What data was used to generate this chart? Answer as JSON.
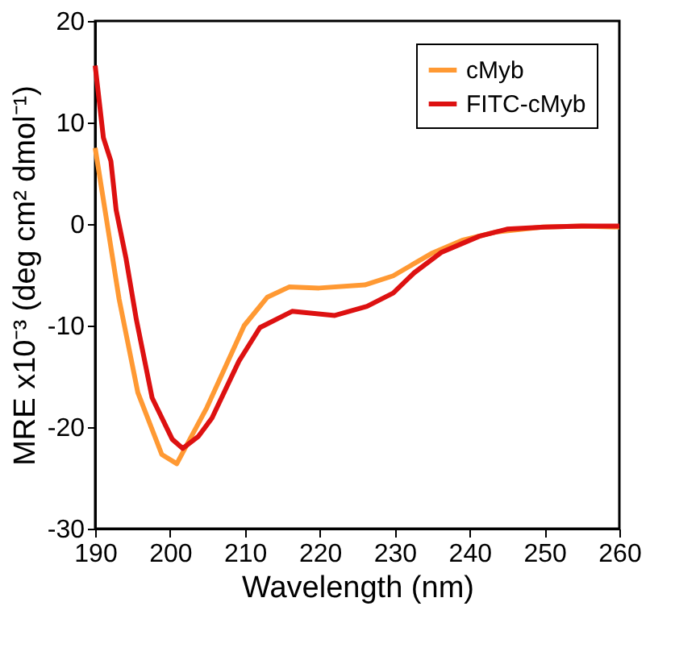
{
  "chart_data": {
    "type": "line",
    "xlabel": "Wavelength (nm)",
    "ylabel": "MRE x10⁻³ (deg cm² dmol⁻¹)",
    "xlim": [
      190,
      260
    ],
    "xticks": [
      190,
      200,
      210,
      220,
      230,
      240,
      250,
      260
    ],
    "ylim": [
      -30,
      20
    ],
    "yticks": [
      -30,
      -20,
      -10,
      0,
      10,
      20
    ],
    "grid": false,
    "legend": "top right",
    "marker": "none",
    "line_style": "solid",
    "series": [
      {
        "name": "cMyb",
        "color": "#ff9933",
        "x": [
          190,
          193.2,
          195.7,
          198.9,
          200.9,
          204.9,
          209.9,
          213,
          215.9,
          219.9,
          226,
          229.8,
          234.9,
          239,
          243.4,
          249.7,
          255,
          260
        ],
        "values": [
          7.5,
          -7.4,
          -16.6,
          -22.7,
          -23.6,
          -18.1,
          -10,
          -7.2,
          -6.2,
          -6.3,
          -6,
          -5.1,
          -2.9,
          -1.6,
          -0.8,
          -0.3,
          -0.2,
          -0.3
        ]
      },
      {
        "name": "FITC-cMyb",
        "color": "#dd1111",
        "x": [
          190,
          191.1,
          192.1,
          192.8,
          194.1,
          195.5,
          197.6,
          200.3,
          201.7,
          203.8,
          205.6,
          209.2,
          212,
          216.3,
          222,
          226.3,
          229.8,
          232.6,
          236.2,
          241.3,
          245,
          250,
          255,
          260
        ],
        "values": [
          15.6,
          8.5,
          6.2,
          1.4,
          -3.3,
          -9.4,
          -17.1,
          -21.2,
          -22.1,
          -20.9,
          -19.1,
          -13.5,
          -10.2,
          -8.6,
          -9,
          -8.1,
          -6.8,
          -4.8,
          -2.8,
          -1.2,
          -0.5,
          -0.3,
          -0.2,
          -0.2
        ]
      }
    ]
  }
}
